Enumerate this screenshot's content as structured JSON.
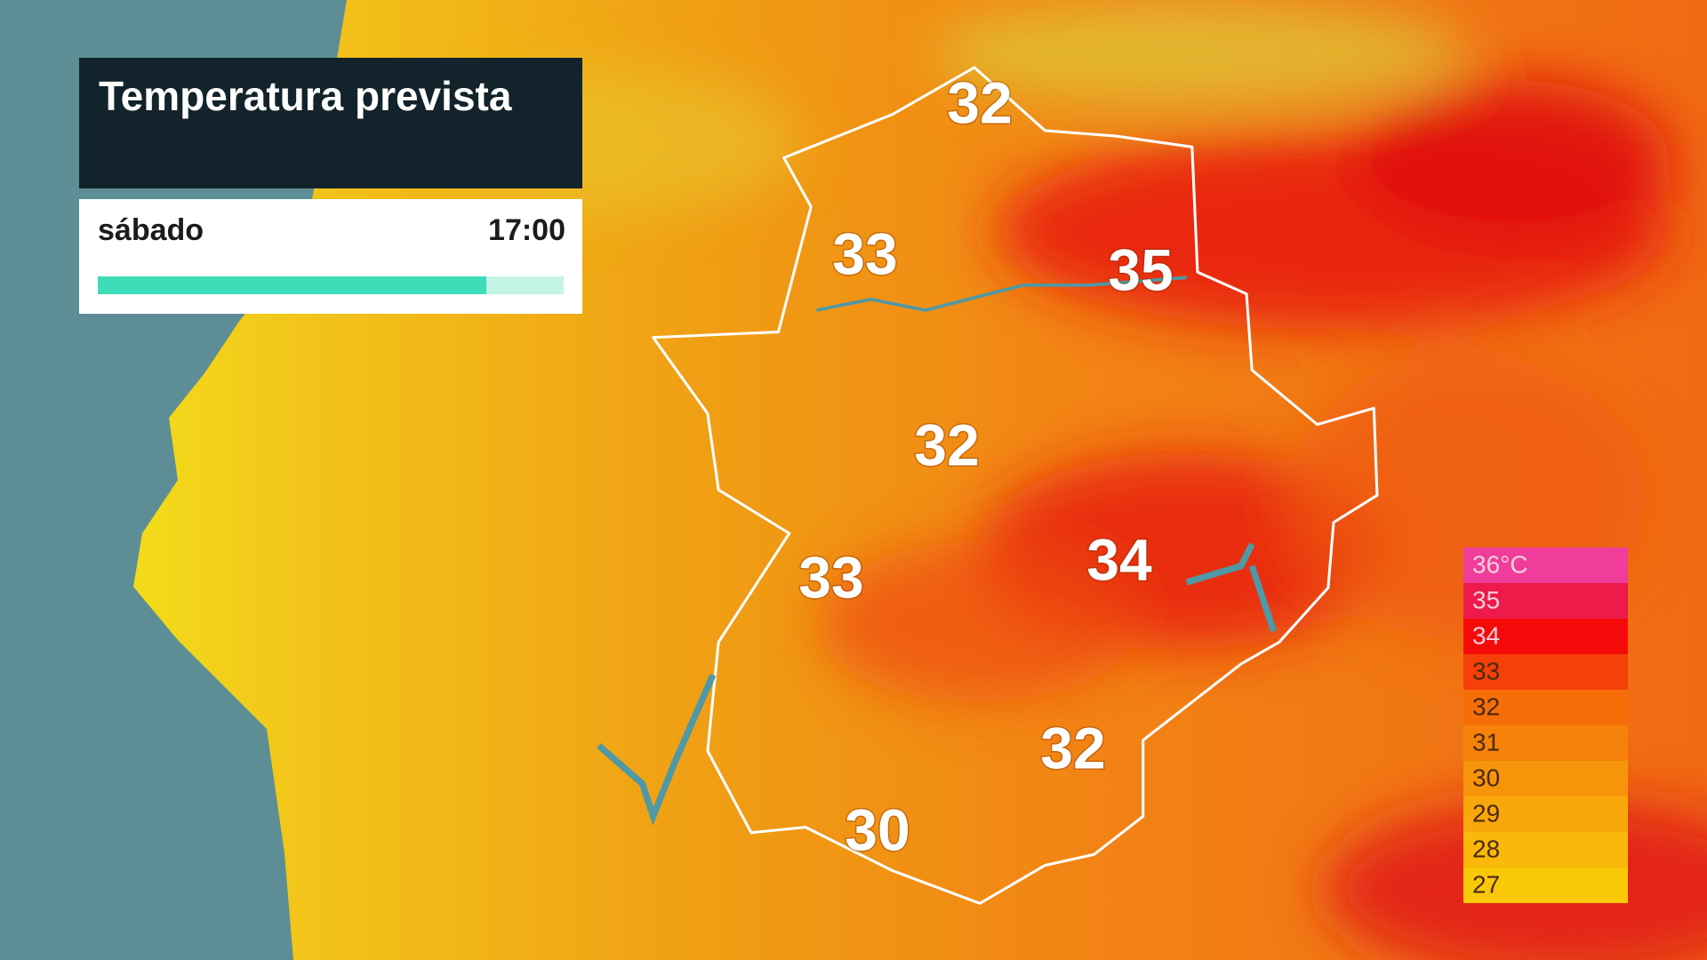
{
  "header": {
    "title": "Temperatura prevista",
    "day": "sábado",
    "time": "17:00"
  },
  "temperatures": [
    "32",
    "33",
    "35",
    "32",
    "33",
    "34",
    "32",
    "30"
  ],
  "legend": [
    {
      "label": "36°C",
      "color": "#f03c9a"
    },
    {
      "label": "35",
      "color": "#ee1a4a"
    },
    {
      "label": "34",
      "color": "#f50a0a"
    },
    {
      "label": "33",
      "color": "#f5400a"
    },
    {
      "label": "32",
      "color": "#f66e08"
    },
    {
      "label": "31",
      "color": "#f7820a"
    },
    {
      "label": "30",
      "color": "#f7950a"
    },
    {
      "label": "29",
      "color": "#f8a80a"
    },
    {
      "label": "28",
      "color": "#f9b80a"
    },
    {
      "label": "27",
      "color": "#f9c808"
    }
  ]
}
